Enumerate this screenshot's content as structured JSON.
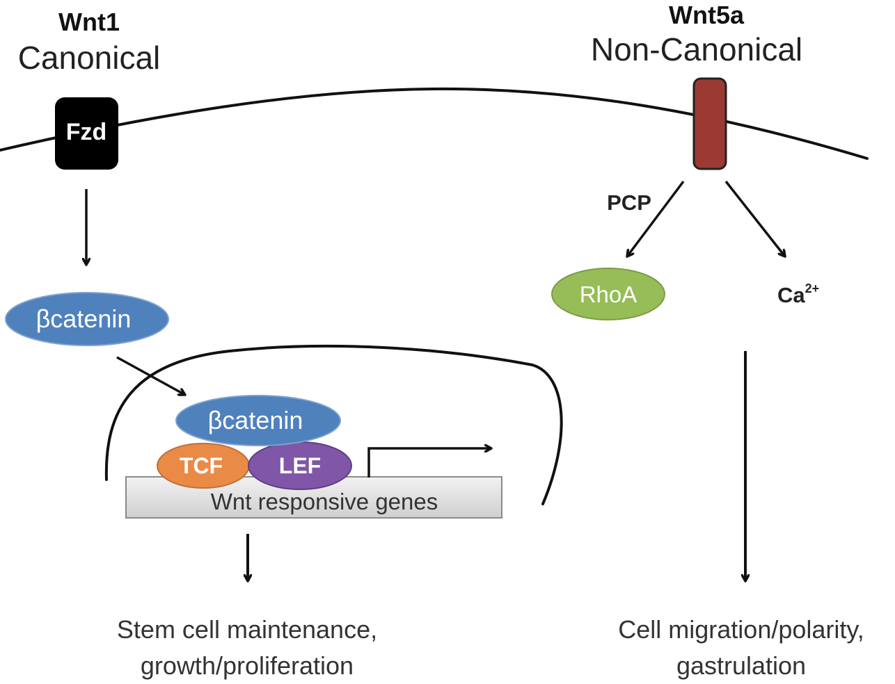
{
  "canonical": {
    "ligand": "Wnt1",
    "pathway": "Canonical",
    "receptor": "Fzd",
    "cytoplasmic_protein": "βcatenin",
    "nuclear_complex": {
      "beta_catenin": "βcatenin",
      "tcf": "TCF",
      "lef": "LEF",
      "genes": "Wnt responsive genes"
    },
    "outcome_lines": [
      "Stem cell maintenance,",
      "growth/proliferation"
    ]
  },
  "non_canonical": {
    "ligand": "Wnt5a",
    "pathway": "Non-Canonical",
    "branch_pcp": "PCP",
    "rhoa": "RhoA",
    "calcium": "Ca",
    "calcium_charge": "2+",
    "outcome_lines": [
      "Cell migration/polarity,",
      "gastrulation"
    ]
  },
  "colors": {
    "fzd_receptor": "#000000",
    "wnt5a_receptor": "#9b3a32",
    "beta_catenin": "#4f81bd",
    "tcf": "#ea8a47",
    "lef": "#7f56a8",
    "rhoa": "#96bd57",
    "gene_bar": "#d9d9d9"
  },
  "icons": {
    "arrow": "arrow-icon",
    "promoter": "transcription-start-arrow-icon"
  }
}
